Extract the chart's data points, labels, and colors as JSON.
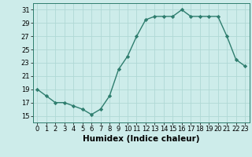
{
  "x": [
    0,
    1,
    2,
    3,
    4,
    5,
    6,
    7,
    8,
    9,
    10,
    11,
    12,
    13,
    14,
    15,
    16,
    17,
    18,
    19,
    20,
    21,
    22,
    23
  ],
  "y": [
    19,
    18,
    17,
    17,
    16.5,
    16,
    15.2,
    16,
    18,
    22,
    24,
    27,
    29.5,
    30,
    30,
    30,
    31,
    30,
    30,
    30,
    30,
    27,
    23.5,
    22.5
  ],
  "line_color": "#2e7d6e",
  "marker": "D",
  "marker_size": 2.2,
  "bg_color": "#cdecea",
  "grid_color": "#b0d8d5",
  "xlabel": "Humidex (Indice chaleur)",
  "xlabel_fontsize": 7.5,
  "ylabel_ticks": [
    15,
    17,
    19,
    21,
    23,
    25,
    27,
    29,
    31
  ],
  "xlim": [
    -0.5,
    23.5
  ],
  "ylim": [
    14.0,
    32.0
  ],
  "tick_fontsize": 6.0,
  "line_width": 1.0
}
